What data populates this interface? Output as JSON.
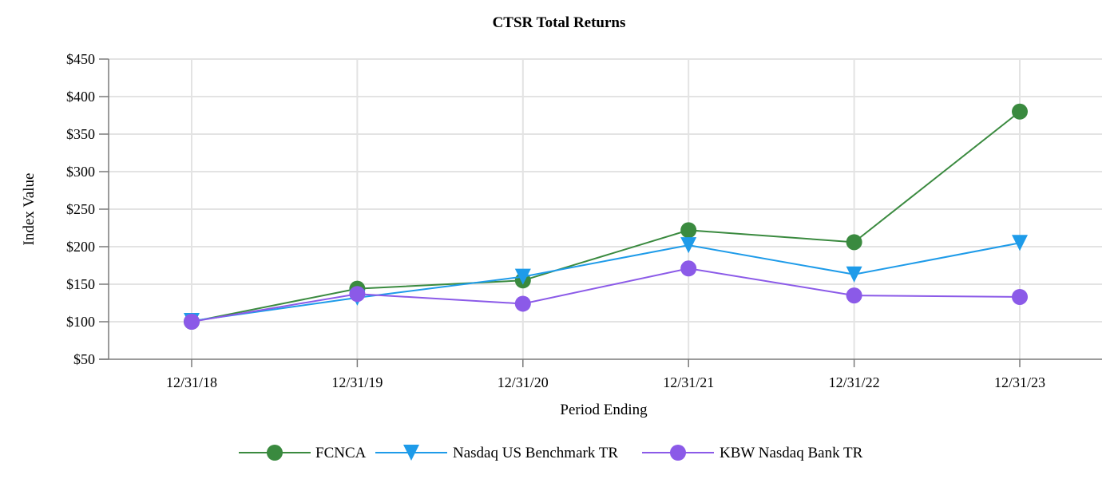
{
  "chart_data": {
    "type": "line",
    "title": "CTSR Total Returns",
    "xlabel": "Period Ending",
    "ylabel": "Index Value",
    "categories": [
      "12/31/18",
      "12/31/19",
      "12/31/20",
      "12/31/21",
      "12/31/22",
      "12/31/23"
    ],
    "ylim": [
      50,
      450
    ],
    "yticks": [
      50,
      100,
      150,
      200,
      250,
      300,
      350,
      400,
      450
    ],
    "ytick_labels": [
      "$50",
      "$100",
      "$150",
      "$200",
      "$250",
      "$300",
      "$350",
      "$400",
      "$450"
    ],
    "grid": true,
    "legend_position": "bottom-center",
    "series": [
      {
        "name": "FCNCA",
        "marker": "circle",
        "color": "#3a8a3f",
        "values": [
          100,
          144,
          155,
          222,
          206,
          380
        ]
      },
      {
        "name": "Nasdaq US Benchmark TR",
        "marker": "triangle-down",
        "color": "#1e9be9",
        "values": [
          101,
          132,
          160,
          202,
          163,
          205
        ]
      },
      {
        "name": "KBW Nasdaq Bank TR",
        "marker": "circle",
        "color": "#8b5ae8",
        "values": [
          100,
          137,
          124,
          171,
          135,
          133
        ]
      }
    ]
  }
}
